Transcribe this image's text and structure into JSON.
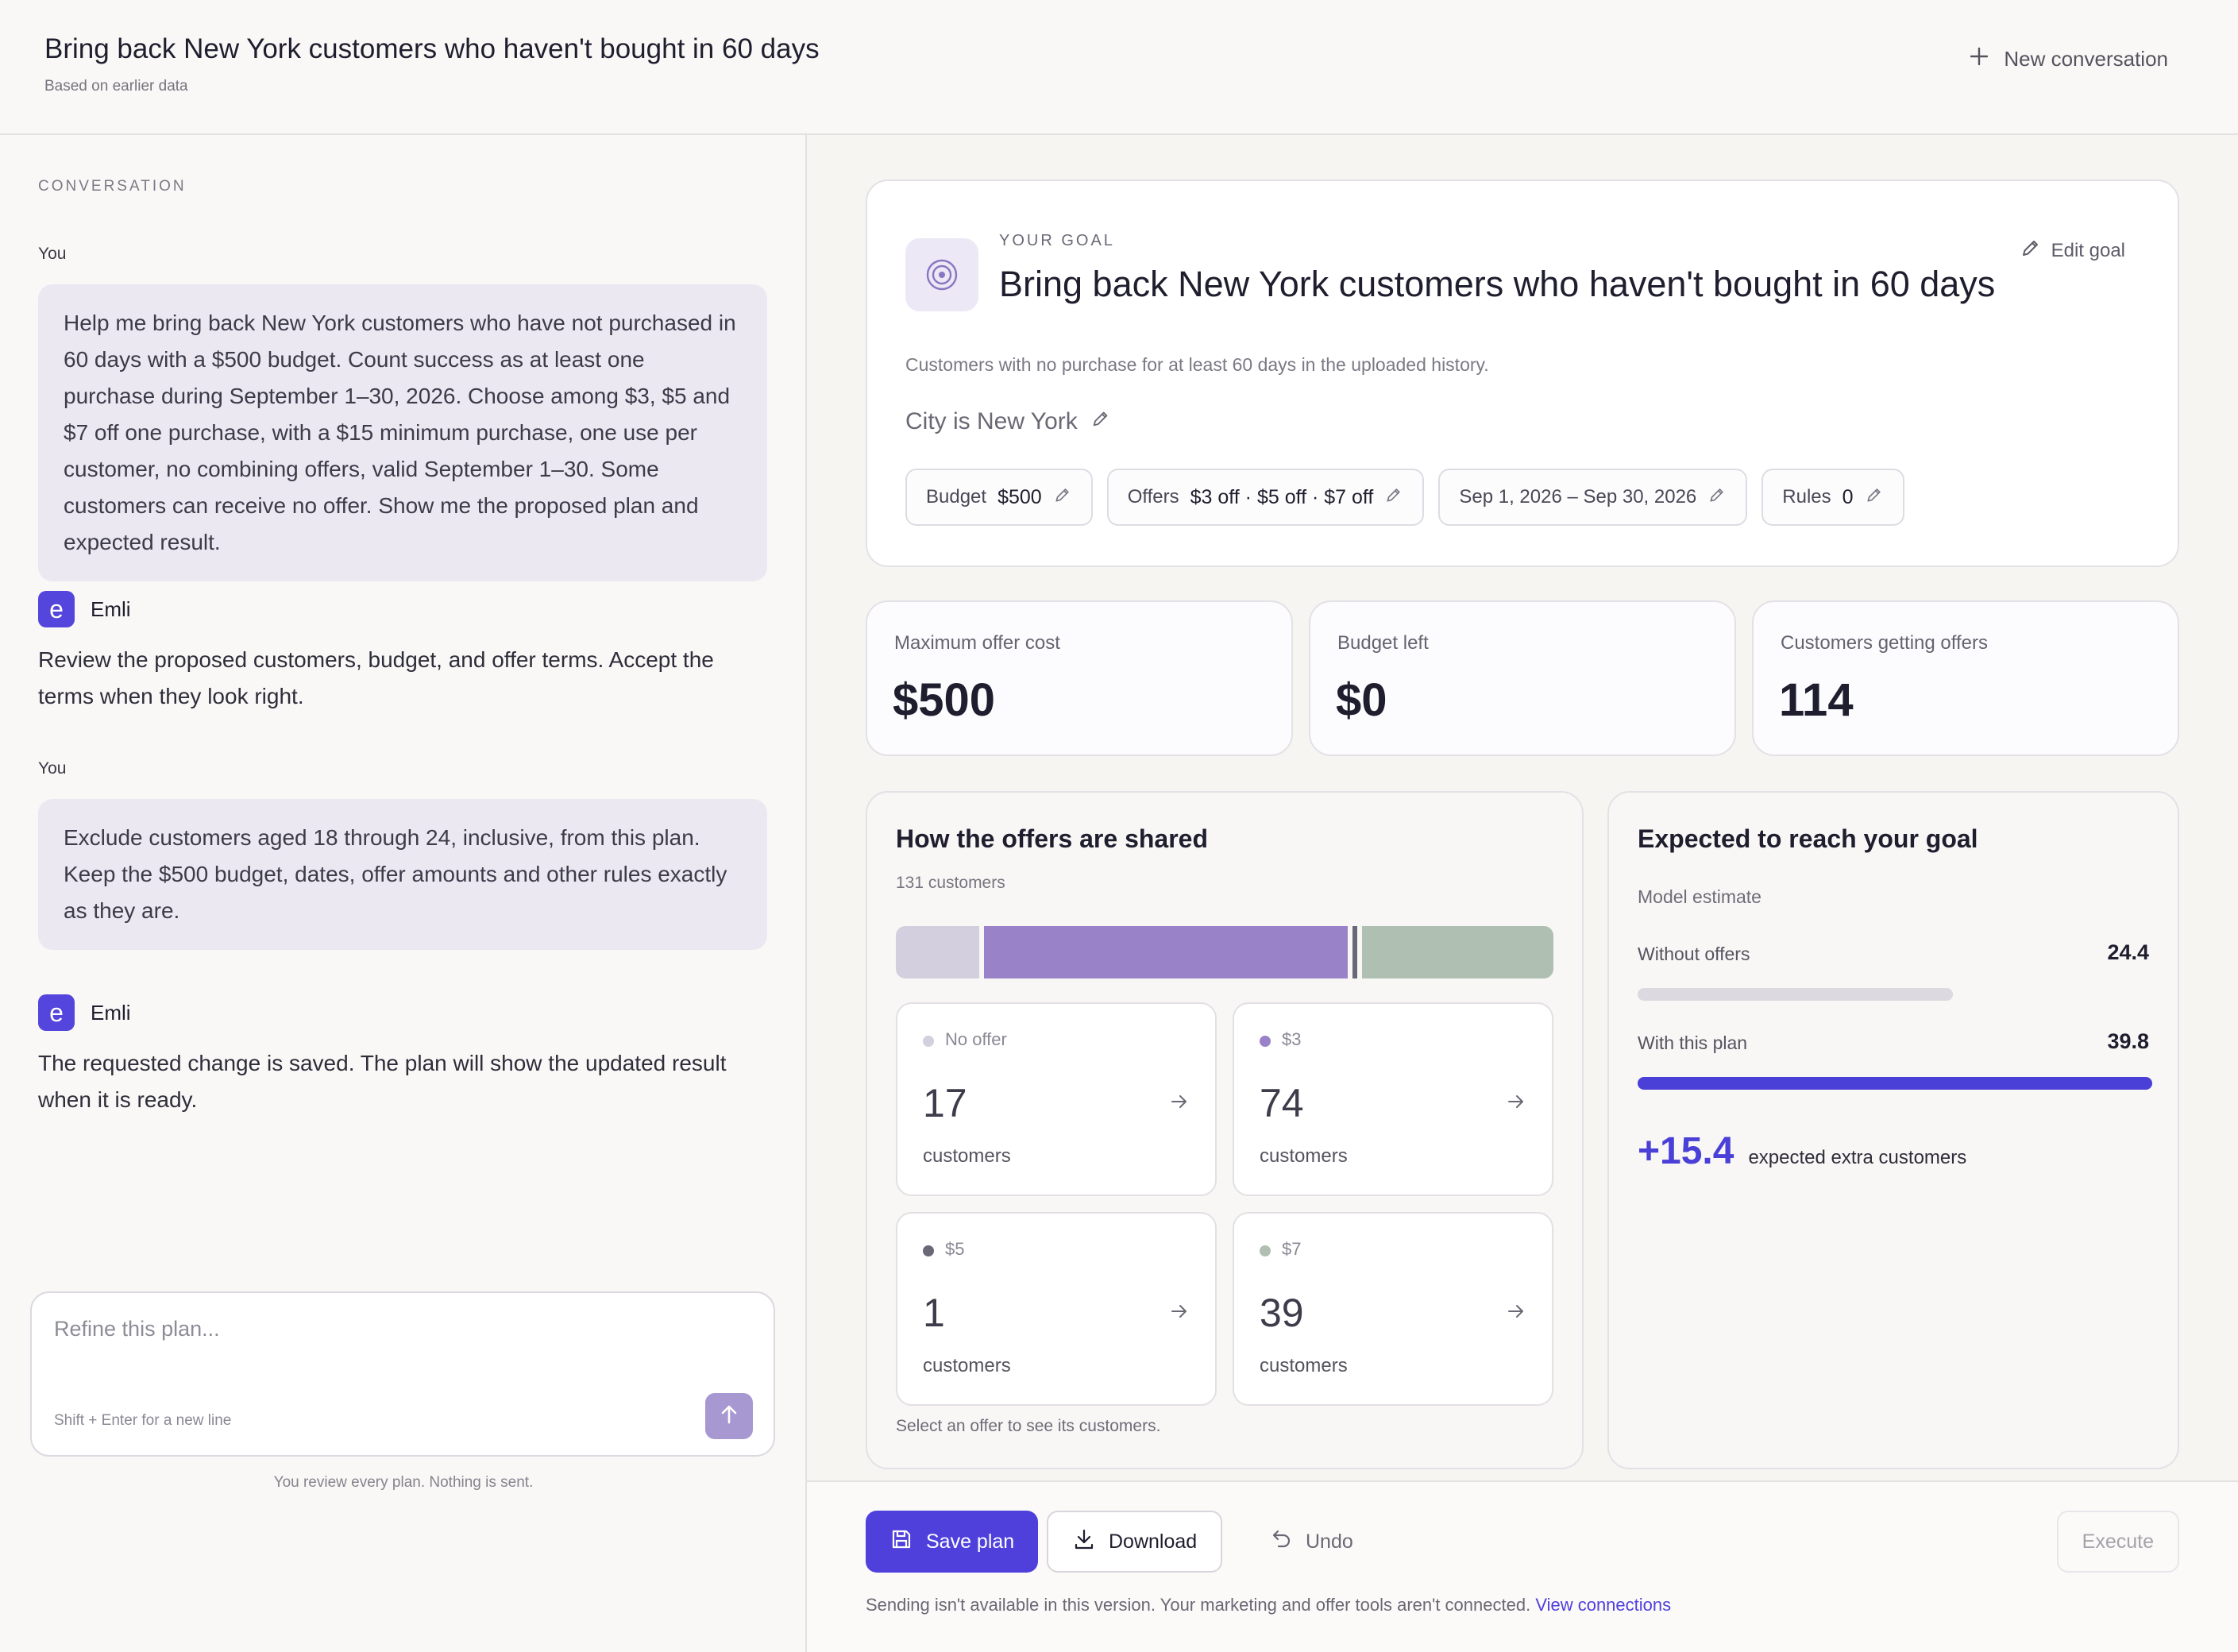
{
  "header": {
    "title": "Bring back New York customers who haven't bought in 60 days",
    "subtitle": "Based on earlier data",
    "new_conversation": "New conversation"
  },
  "conversation": {
    "section_label": "CONVERSATION",
    "messages": [
      {
        "role": "You",
        "text": "Help me bring back New York customers who have not purchased in 60 days with a $500 budget. Count success as at least one purchase during September 1–30, 2026. Choose among $3, $5 and $7 off one purchase, with a $15 minimum purchase, one use per customer, no combining offers, valid September 1–30. Some customers can receive no offer. Show me the proposed plan and expected result."
      },
      {
        "role": "Emli",
        "avatar": "e",
        "text": "Review the proposed customers, budget, and offer terms. Accept the terms when they look right."
      },
      {
        "role": "You",
        "text": "Exclude customers aged 18 through 24, inclusive, from this plan. Keep the $500 budget, dates, offer amounts and other rules exactly as they are."
      },
      {
        "role": "Emli",
        "avatar": "e",
        "text": "The requested change is saved. The plan will show the updated result when it is ready."
      }
    ],
    "composer": {
      "placeholder": "Refine this plan...",
      "hint": "Shift + Enter for a new line",
      "send_icon": "arrow-up-icon"
    },
    "review_note": "You review every plan. Nothing is sent."
  },
  "goal": {
    "label": "YOUR GOAL",
    "title": "Bring back New York customers who haven't bought in 60 days",
    "edit_label": "Edit goal",
    "description": "Customers with no purchase for at least 60 days in the uploaded history.",
    "filter": "City is New York",
    "chips": [
      {
        "label": "Budget",
        "value": "$500"
      },
      {
        "label": "Offers",
        "value": "$3 off · $5 off · $7 off"
      },
      {
        "label": "",
        "value": "Sep 1, 2026 – Sep 30, 2026"
      },
      {
        "label": "Rules",
        "value": "0"
      }
    ]
  },
  "stats": [
    {
      "label": "Maximum offer cost",
      "value": "$500"
    },
    {
      "label": "Budget left",
      "value": "$0"
    },
    {
      "label": "Customers getting offers",
      "value": "114"
    }
  ],
  "shares": {
    "title": "How the offers are shared",
    "subtitle": "131 customers",
    "groups": [
      {
        "label": "No offer",
        "count": 17,
        "unit": "customers",
        "color": "#d3cfde"
      },
      {
        "label": "$3",
        "count": 74,
        "unit": "customers",
        "color": "#9a82c8"
      },
      {
        "label": "$5",
        "count": 1,
        "unit": "customers",
        "color": "#6a6878"
      },
      {
        "label": "$7",
        "count": 39,
        "unit": "customers",
        "color": "#afbfb1"
      }
    ],
    "hint": "Select an offer to see its customers."
  },
  "reach": {
    "title": "Expected to reach your goal",
    "subtitle": "Model estimate",
    "without_label": "Without offers",
    "without_value": "24.4",
    "with_label": "With this plan",
    "with_value": "39.8",
    "delta": "+15.4",
    "delta_label": "expected extra customers",
    "colors": {
      "without": "#dcd9e1",
      "with": "#4a3fd6"
    }
  },
  "footer": {
    "save": "Save plan",
    "download": "Download",
    "undo": "Undo",
    "execute": "Execute",
    "note": "Sending isn't available in this version. Your marketing and offer tools aren't connected.",
    "link": "View connections"
  }
}
